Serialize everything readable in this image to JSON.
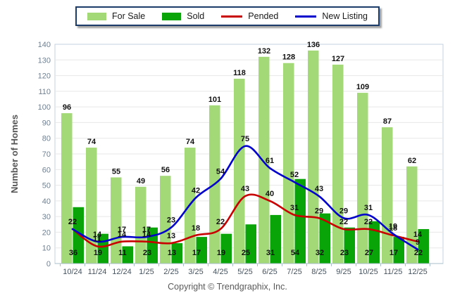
{
  "legend": {
    "items": [
      {
        "label": "For Sale",
        "type": "bar",
        "color": "#A3D977"
      },
      {
        "label": "Sold",
        "type": "bar",
        "color": "#08A408"
      },
      {
        "label": "Pended",
        "type": "line",
        "color": "#C80000"
      },
      {
        "label": "New Listing",
        "type": "line",
        "color": "#0000CD"
      }
    ]
  },
  "chart_data": {
    "type": "bar",
    "subtype": "grouped-bars-with-smooth-lines",
    "categories": [
      "10/24",
      "11/24",
      "12/24",
      "1/25",
      "2/25",
      "3/25",
      "4/25",
      "5/25",
      "6/25",
      "7/25",
      "8/25",
      "9/25",
      "10/25",
      "11/25",
      "12/25"
    ],
    "series": [
      {
        "name": "For Sale",
        "type": "bar",
        "color": "#A3D977",
        "values": [
          96,
          74,
          55,
          49,
          56,
          74,
          101,
          118,
          132,
          128,
          136,
          127,
          109,
          87,
          62
        ]
      },
      {
        "name": "Sold",
        "type": "bar",
        "color": "#08A408",
        "values": [
          36,
          19,
          11,
          23,
          13,
          17,
          19,
          25,
          31,
          54,
          32,
          23,
          27,
          17,
          22
        ]
      },
      {
        "name": "Pended",
        "type": "line",
        "color": "#C80000",
        "values": [
          22,
          11,
          14,
          14,
          13,
          18,
          22,
          43,
          40,
          31,
          29,
          22,
          22,
          18,
          14
        ]
      },
      {
        "name": "New Listing",
        "type": "line",
        "color": "#0000CD",
        "values": [
          22,
          14,
          17,
          17,
          23,
          42,
          54,
          75,
          61,
          52,
          43,
          29,
          31,
          19,
          9
        ]
      }
    ],
    "title": "",
    "xlabel": "",
    "ylabel": "Number of Homes",
    "ylim": [
      0,
      140
    ],
    "ytick_step": 10,
    "grid": true,
    "legend_position": "top-center",
    "colors": {
      "grid_line": "#E7E7E7",
      "plot_border": "#C3D2DF",
      "axis_line": "#A9BDCB",
      "y_tick_label": "#6E7F90",
      "x_tick_label": "#46535F",
      "value_label": "#111111",
      "y_axis_title": "#555555"
    }
  },
  "footer": {
    "copyright": "Copyright © Trendgraphix, Inc."
  }
}
